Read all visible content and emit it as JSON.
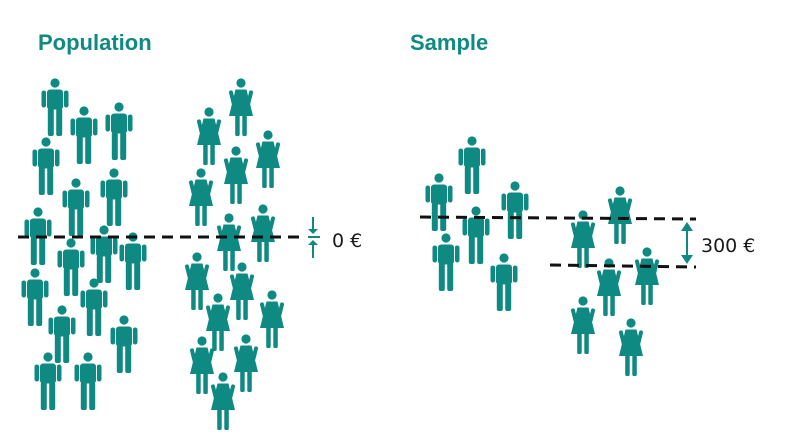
{
  "population": {
    "heading": "Population",
    "gap_label": "0 €"
  },
  "sample": {
    "heading": "Sample",
    "gap_label": "300 €"
  },
  "colors": {
    "accent": "#0f8a83",
    "figure": "#0f8a83",
    "mean_line": "#111111",
    "arrow": "#0f8a83"
  },
  "icons": {
    "male": "male-person-icon",
    "female": "female-person-icon"
  }
}
